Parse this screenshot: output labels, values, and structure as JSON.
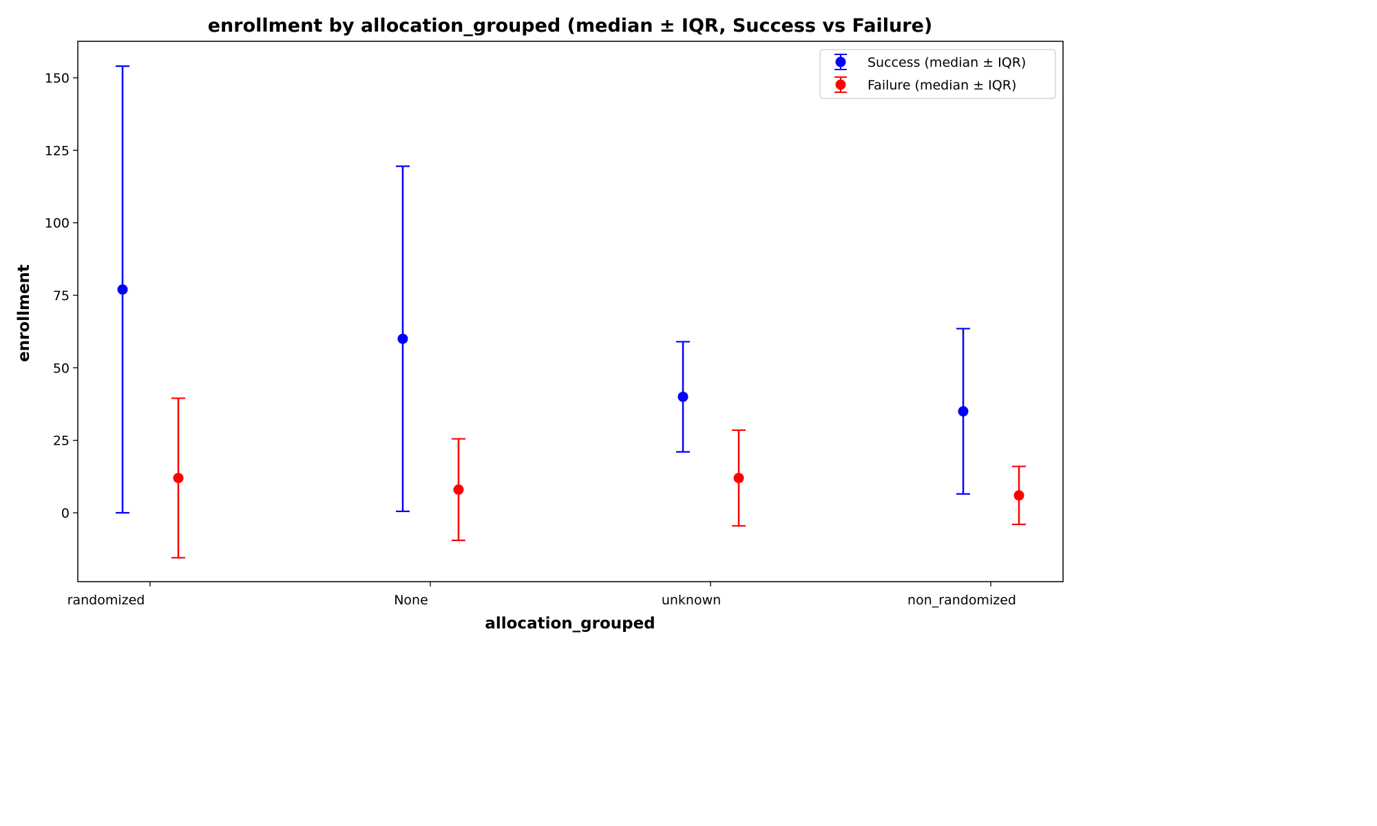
{
  "chart_data": {
    "type": "scatter",
    "title": "enrollment by allocation_grouped (median ± IQR, Success vs Failure)",
    "xlabel": "allocation_grouped",
    "ylabel": "enrollment",
    "categories": [
      "randomized",
      "None",
      "unknown",
      "non_randomized"
    ],
    "yticks": [
      0,
      25,
      50,
      75,
      100,
      125,
      150
    ],
    "ylim": [
      -24,
      163
    ],
    "grid": false,
    "legend_position": "top-right",
    "series": [
      {
        "name": "Success (median ± IQR)",
        "color": "#0000ff",
        "offset": -0.2,
        "medians": [
          77,
          60,
          40,
          35
        ],
        "lower": [
          0,
          0.5,
          21,
          6.5
        ],
        "upper": [
          154,
          119.5,
          59,
          63.5
        ]
      },
      {
        "name": "Failure (median ± IQR)",
        "color": "#ff0000",
        "offset": 0.2,
        "medians": [
          12,
          8,
          12,
          6
        ],
        "lower": [
          -15.5,
          -9.5,
          -4.5,
          -4
        ],
        "upper": [
          39.5,
          25.5,
          28.5,
          16
        ]
      }
    ]
  }
}
